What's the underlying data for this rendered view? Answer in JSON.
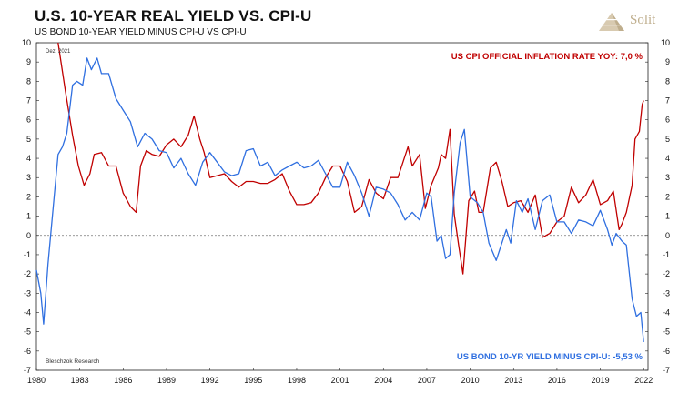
{
  "header": {
    "title": "U.S. 10-YEAR REAL YIELD VS. CPI-U",
    "subtitle": "US BOND 10-YEAR YIELD MINUS CPI-U VS CPI-U",
    "logo_text": "Solit"
  },
  "chart_data": {
    "type": "line",
    "ylim": [
      -7,
      10
    ],
    "xlim": [
      1980,
      2022.3
    ],
    "y_ticks": [
      -7,
      -6,
      -5,
      -4,
      -3,
      -2,
      -1,
      0,
      1,
      2,
      3,
      4,
      5,
      6,
      7,
      8,
      9,
      10
    ],
    "x_ticks": [
      "1980",
      "1983",
      "1986",
      "1989",
      "1992",
      "1995",
      "1998",
      "2001",
      "2004",
      "2007",
      "2010",
      "2013",
      "2016",
      "2019",
      "2022"
    ],
    "grid": false,
    "zero_line": "dashed",
    "date_note": "Dez. 2021",
    "credit": "Bleschzok Research",
    "series": [
      {
        "name": "US CPI OFFICIAL INFLATION RATE YOY: 7,0 %",
        "color": "#c00000",
        "points": [
          [
            1981.5,
            10.0
          ],
          [
            1982.0,
            7.5
          ],
          [
            1982.5,
            5.2
          ],
          [
            1982.9,
            3.6
          ],
          [
            1983.3,
            2.6
          ],
          [
            1983.7,
            3.2
          ],
          [
            1984.0,
            4.2
          ],
          [
            1984.5,
            4.3
          ],
          [
            1985.0,
            3.6
          ],
          [
            1985.5,
            3.6
          ],
          [
            1986.0,
            2.2
          ],
          [
            1986.5,
            1.5
          ],
          [
            1986.9,
            1.2
          ],
          [
            1987.2,
            3.6
          ],
          [
            1987.6,
            4.4
          ],
          [
            1988.0,
            4.2
          ],
          [
            1988.5,
            4.1
          ],
          [
            1989.0,
            4.7
          ],
          [
            1989.5,
            5.0
          ],
          [
            1990.0,
            4.6
          ],
          [
            1990.5,
            5.2
          ],
          [
            1990.9,
            6.2
          ],
          [
            1991.3,
            5.0
          ],
          [
            1991.6,
            4.3
          ],
          [
            1992.0,
            3.0
          ],
          [
            1992.5,
            3.1
          ],
          [
            1993.0,
            3.2
          ],
          [
            1993.5,
            2.8
          ],
          [
            1994.0,
            2.5
          ],
          [
            1994.5,
            2.8
          ],
          [
            1995.0,
            2.8
          ],
          [
            1995.5,
            2.7
          ],
          [
            1996.0,
            2.7
          ],
          [
            1996.5,
            2.9
          ],
          [
            1997.0,
            3.2
          ],
          [
            1997.5,
            2.3
          ],
          [
            1998.0,
            1.6
          ],
          [
            1998.5,
            1.6
          ],
          [
            1999.0,
            1.7
          ],
          [
            1999.5,
            2.2
          ],
          [
            2000.0,
            3.0
          ],
          [
            2000.5,
            3.6
          ],
          [
            2001.0,
            3.6
          ],
          [
            2001.5,
            2.8
          ],
          [
            2002.0,
            1.2
          ],
          [
            2002.5,
            1.5
          ],
          [
            2003.0,
            2.9
          ],
          [
            2003.5,
            2.2
          ],
          [
            2004.0,
            1.9
          ],
          [
            2004.5,
            3.0
          ],
          [
            2005.0,
            3.0
          ],
          [
            2005.7,
            4.6
          ],
          [
            2006.0,
            3.6
          ],
          [
            2006.5,
            4.2
          ],
          [
            2006.9,
            1.4
          ],
          [
            2007.3,
            2.6
          ],
          [
            2007.8,
            3.5
          ],
          [
            2008.0,
            4.2
          ],
          [
            2008.3,
            4.0
          ],
          [
            2008.6,
            5.5
          ],
          [
            2008.9,
            1.1
          ],
          [
            2009.2,
            -0.5
          ],
          [
            2009.5,
            -2.0
          ],
          [
            2009.9,
            1.8
          ],
          [
            2010.3,
            2.3
          ],
          [
            2010.6,
            1.2
          ],
          [
            2010.9,
            1.2
          ],
          [
            2011.4,
            3.5
          ],
          [
            2011.8,
            3.8
          ],
          [
            2012.2,
            2.8
          ],
          [
            2012.6,
            1.5
          ],
          [
            2013.0,
            1.7
          ],
          [
            2013.5,
            1.8
          ],
          [
            2014.0,
            1.2
          ],
          [
            2014.5,
            2.1
          ],
          [
            2015.0,
            -0.1
          ],
          [
            2015.5,
            0.1
          ],
          [
            2016.0,
            0.7
          ],
          [
            2016.5,
            1.0
          ],
          [
            2017.0,
            2.5
          ],
          [
            2017.5,
            1.7
          ],
          [
            2018.0,
            2.1
          ],
          [
            2018.5,
            2.9
          ],
          [
            2019.0,
            1.6
          ],
          [
            2019.5,
            1.8
          ],
          [
            2019.9,
            2.3
          ],
          [
            2020.3,
            0.3
          ],
          [
            2020.5,
            0.6
          ],
          [
            2020.8,
            1.2
          ],
          [
            2021.2,
            2.6
          ],
          [
            2021.4,
            5.0
          ],
          [
            2021.7,
            5.4
          ],
          [
            2021.9,
            6.8
          ],
          [
            2022.0,
            7.0
          ]
        ]
      },
      {
        "name": "US BOND 10-YR YIELD MINUS CPI-U: -5,53 %",
        "color": "#2f6fe0",
        "points": [
          [
            1980.0,
            -1.8
          ],
          [
            1980.3,
            -3.0
          ],
          [
            1980.5,
            -4.6
          ],
          [
            1980.8,
            -1.5
          ],
          [
            1981.2,
            1.8
          ],
          [
            1981.5,
            4.2
          ],
          [
            1981.8,
            4.6
          ],
          [
            1982.1,
            5.3
          ],
          [
            1982.5,
            7.8
          ],
          [
            1982.8,
            8.0
          ],
          [
            1983.2,
            7.8
          ],
          [
            1983.5,
            9.2
          ],
          [
            1983.8,
            8.6
          ],
          [
            1984.2,
            9.2
          ],
          [
            1984.5,
            8.4
          ],
          [
            1985.0,
            8.4
          ],
          [
            1985.5,
            7.1
          ],
          [
            1986.0,
            6.5
          ],
          [
            1986.5,
            5.9
          ],
          [
            1987.0,
            4.6
          ],
          [
            1987.5,
            5.3
          ],
          [
            1988.0,
            5.0
          ],
          [
            1988.5,
            4.4
          ],
          [
            1989.0,
            4.3
          ],
          [
            1989.5,
            3.5
          ],
          [
            1990.0,
            4.0
          ],
          [
            1990.5,
            3.2
          ],
          [
            1991.0,
            2.6
          ],
          [
            1991.5,
            3.8
          ],
          [
            1992.0,
            4.3
          ],
          [
            1992.5,
            3.8
          ],
          [
            1993.0,
            3.3
          ],
          [
            1993.5,
            3.1
          ],
          [
            1994.0,
            3.2
          ],
          [
            1994.5,
            4.4
          ],
          [
            1995.0,
            4.5
          ],
          [
            1995.5,
            3.6
          ],
          [
            1996.0,
            3.8
          ],
          [
            1996.5,
            3.1
          ],
          [
            1997.0,
            3.4
          ],
          [
            1997.5,
            3.6
          ],
          [
            1998.0,
            3.8
          ],
          [
            1998.5,
            3.5
          ],
          [
            1999.0,
            3.6
          ],
          [
            1999.5,
            3.9
          ],
          [
            2000.0,
            3.2
          ],
          [
            2000.5,
            2.5
          ],
          [
            2001.0,
            2.5
          ],
          [
            2001.5,
            3.8
          ],
          [
            2002.0,
            3.1
          ],
          [
            2002.5,
            2.2
          ],
          [
            2003.0,
            1.0
          ],
          [
            2003.5,
            2.5
          ],
          [
            2004.0,
            2.4
          ],
          [
            2004.5,
            2.2
          ],
          [
            2005.0,
            1.6
          ],
          [
            2005.5,
            0.8
          ],
          [
            2006.0,
            1.2
          ],
          [
            2006.5,
            0.8
          ],
          [
            2007.0,
            2.2
          ],
          [
            2007.3,
            2.0
          ],
          [
            2007.7,
            -0.3
          ],
          [
            2008.0,
            0.0
          ],
          [
            2008.3,
            -1.2
          ],
          [
            2008.6,
            -1.0
          ],
          [
            2008.9,
            2.2
          ],
          [
            2009.3,
            4.8
          ],
          [
            2009.6,
            5.5
          ],
          [
            2010.0,
            2.0
          ],
          [
            2010.5,
            1.7
          ],
          [
            2010.9,
            1.2
          ],
          [
            2011.3,
            -0.4
          ],
          [
            2011.8,
            -1.3
          ],
          [
            2012.1,
            -0.6
          ],
          [
            2012.5,
            0.3
          ],
          [
            2012.8,
            -0.4
          ],
          [
            2013.2,
            1.8
          ],
          [
            2013.6,
            1.2
          ],
          [
            2014.0,
            1.9
          ],
          [
            2014.5,
            0.3
          ],
          [
            2015.0,
            1.8
          ],
          [
            2015.5,
            2.1
          ],
          [
            2016.0,
            0.7
          ],
          [
            2016.5,
            0.7
          ],
          [
            2017.0,
            0.1
          ],
          [
            2017.5,
            0.8
          ],
          [
            2018.0,
            0.7
          ],
          [
            2018.5,
            0.5
          ],
          [
            2019.0,
            1.3
          ],
          [
            2019.5,
            0.3
          ],
          [
            2019.8,
            -0.5
          ],
          [
            2020.1,
            0.1
          ],
          [
            2020.5,
            -0.3
          ],
          [
            2020.8,
            -0.5
          ],
          [
            2021.2,
            -3.3
          ],
          [
            2021.5,
            -4.2
          ],
          [
            2021.8,
            -4.0
          ],
          [
            2022.0,
            -5.53
          ]
        ]
      }
    ]
  }
}
